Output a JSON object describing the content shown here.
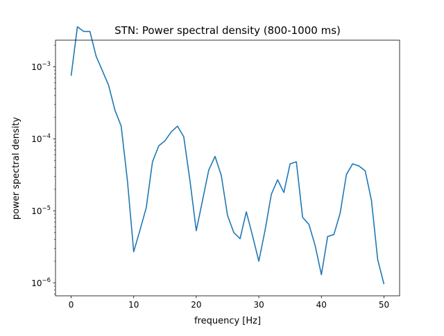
{
  "chart_data": {
    "type": "line",
    "title": "STN: Power spectral density (800-1000 ms)",
    "xlabel": "frequency [Hz]",
    "ylabel": "power spectral density",
    "xlim": [
      -2.5,
      52.5
    ],
    "ylim_log10": [
      -6.18,
      -5.36
    ],
    "yscale": "log",
    "grid": false,
    "line_color": "#1f77b4",
    "x_ticks": [
      0,
      10,
      20,
      30,
      40,
      50
    ],
    "y_ticks": [
      {
        "value": 1e-06,
        "base": "10",
        "exp": "−6"
      },
      {
        "value": 1e-05,
        "base": "10",
        "exp": "−5"
      },
      {
        "value": 0.0001,
        "base": "10",
        "exp": "−4"
      },
      {
        "value": 0.001,
        "base": "10",
        "exp": "−3"
      }
    ],
    "x": [
      0,
      1,
      2,
      3,
      4,
      5,
      6,
      7,
      8,
      9,
      10,
      11,
      12,
      13,
      14,
      15,
      16,
      17,
      18,
      19,
      20,
      21,
      22,
      23,
      24,
      25,
      26,
      27,
      28,
      29,
      30,
      31,
      32,
      33,
      34,
      35,
      36,
      37,
      38,
      39,
      40,
      41,
      42,
      43,
      44,
      45,
      46,
      47,
      48,
      49,
      50
    ],
    "y": [
      0.00075,
      0.0036,
      0.0031,
      0.0031,
      0.0014,
      0.00088,
      0.00055,
      0.00025,
      0.00015,
      2.6e-05,
      2.7e-06,
      5.4e-06,
      1.1e-05,
      4.8e-05,
      8e-05,
      9.4e-05,
      0.000125,
      0.00015,
      0.000107,
      2.6e-05,
      5.3e-06,
      1.4e-05,
      3.7e-05,
      5.7e-05,
      3.1e-05,
      8.6e-06,
      5e-06,
      4.1e-06,
      9.7e-06,
      4.5e-06,
      2e-06,
      5.4e-06,
      1.7e-05,
      2.7e-05,
      1.8e-05,
      4.5e-05,
      4.8e-05,
      8.1e-06,
      6.5e-06,
      3.3e-06,
      1.3e-06,
      4.4e-06,
      4.7e-06,
      9.3e-06,
      3.2e-05,
      4.5e-05,
      4.2e-05,
      3.6e-05,
      1.4e-05,
      2.1e-06,
      9.6e-07
    ]
  }
}
